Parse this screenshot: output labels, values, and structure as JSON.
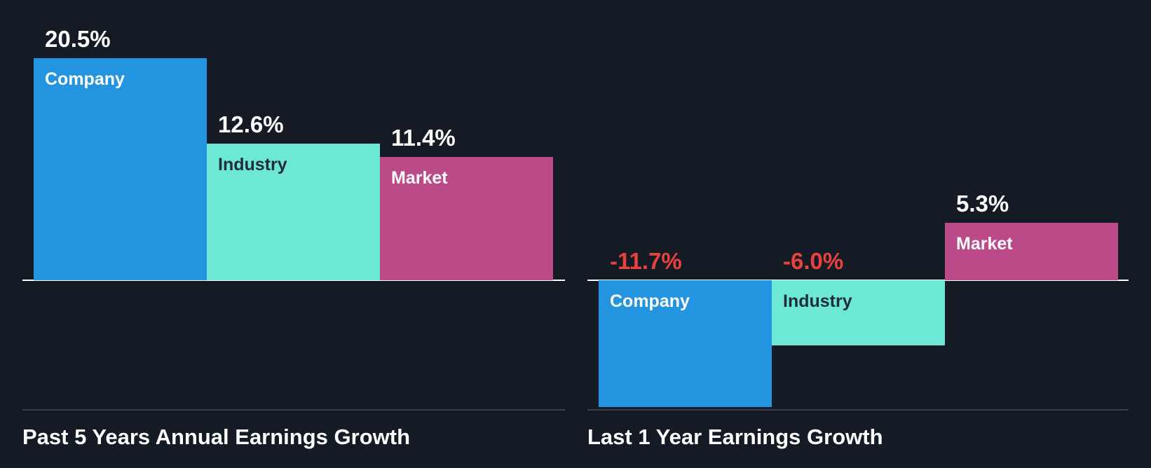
{
  "chart_data": [
    {
      "type": "bar",
      "title": "Past 5 Years Annual Earnings Growth",
      "categories": [
        "Company",
        "Industry",
        "Market"
      ],
      "values": [
        20.5,
        12.6,
        11.4
      ],
      "value_labels": [
        "20.5%",
        "12.6%",
        "11.4%"
      ],
      "colors": [
        "#2394e0",
        "#6ee8d6",
        "#bb4a88"
      ],
      "category_label_colors": [
        "#ffffff",
        "#1f2d3a",
        "#ffffff"
      ],
      "ylim": [
        -12,
        20.5
      ],
      "grid": false,
      "legend": "none"
    },
    {
      "type": "bar",
      "title": "Last 1 Year Earnings Growth",
      "categories": [
        "Company",
        "Industry",
        "Market"
      ],
      "values": [
        -11.7,
        -6.0,
        5.3
      ],
      "value_labels": [
        "-11.7%",
        "-6.0%",
        "5.3%"
      ],
      "colors": [
        "#2394e0",
        "#6ee8d6",
        "#bb4a88"
      ],
      "category_label_colors": [
        "#ffffff",
        "#1f2d3a",
        "#ffffff"
      ],
      "ylim": [
        -11.7,
        20.5
      ],
      "grid": false,
      "legend": "none"
    }
  ],
  "colors": {
    "background": "#151b24",
    "positive_value": "#ffffff",
    "negative_value": "#e8423f"
  }
}
